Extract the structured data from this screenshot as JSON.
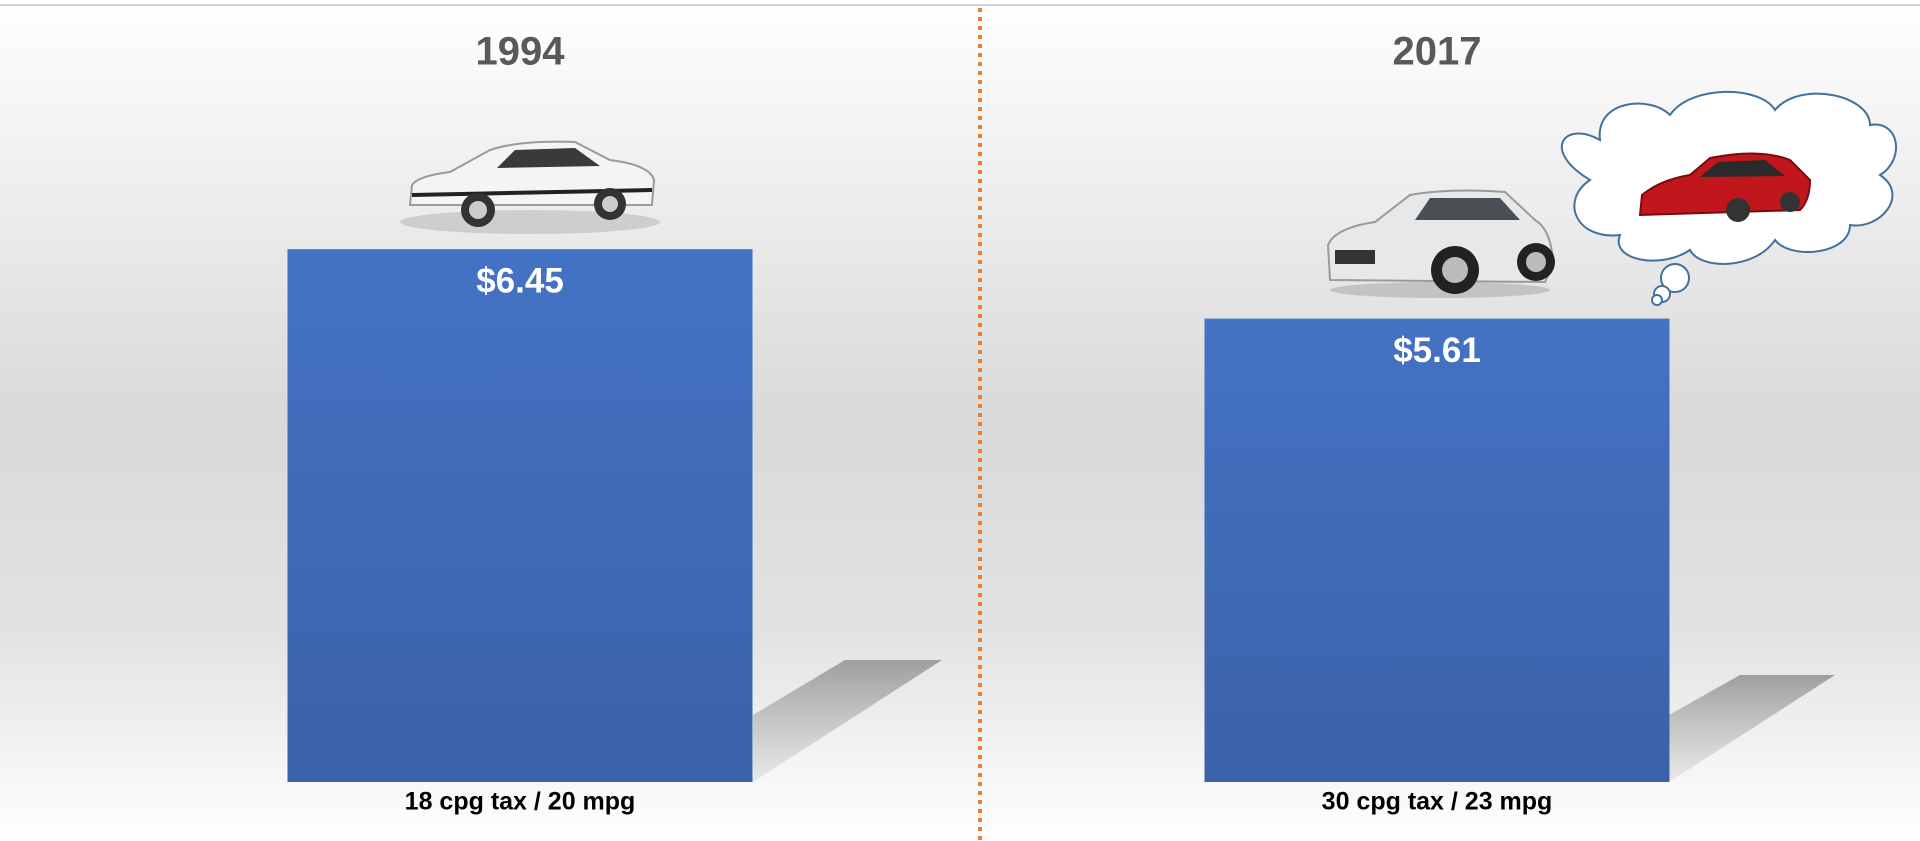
{
  "chart_data": [
    {
      "type": "bar",
      "title": "1994",
      "categories": [
        "18 cpg tax / 20 mpg"
      ],
      "values": [
        6.45
      ],
      "value_labels": [
        "$6.45"
      ],
      "color": "#4472c4"
    },
    {
      "type": "bar",
      "title": "2017",
      "categories": [
        "30 cpg tax / 23 mpg"
      ],
      "values": [
        5.61
      ],
      "value_labels": [
        "$5.61"
      ],
      "color": "#4472c4"
    }
  ]
}
